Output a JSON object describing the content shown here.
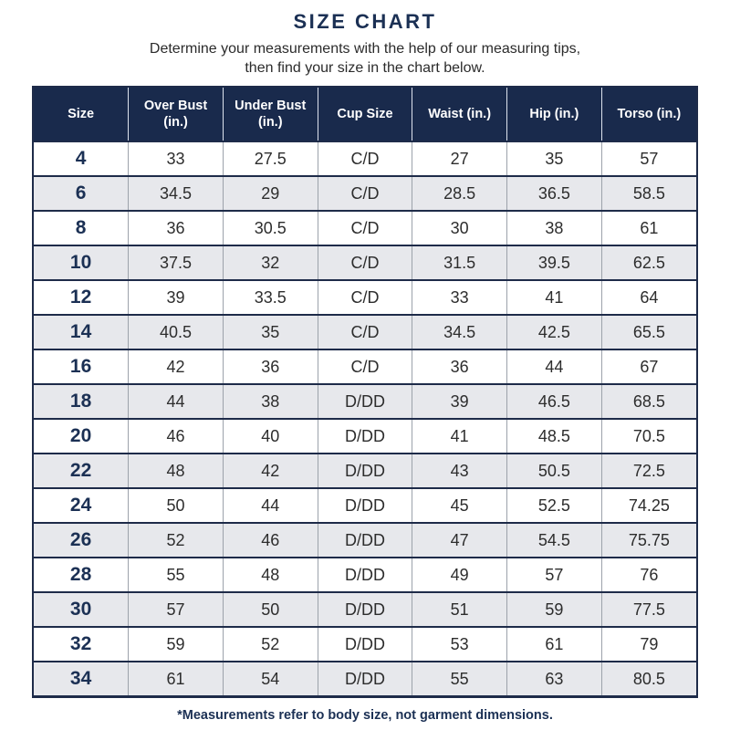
{
  "page": {
    "title": "SIZE CHART",
    "subtitle_line1": "Determine your measurements with the help of our measuring tips,",
    "subtitle_line2": "then find your size in the chart below.",
    "footnote": "*Measurements refer to body size, not garment dimensions."
  },
  "colors": {
    "navy_accent": "#1B3054",
    "header_background": "#192A4C",
    "row_stripe": "#E7E8EC",
    "row_white": "#FFFFFF",
    "body_text": "#2D2D2D",
    "grid_line_navy": "#1E2B49",
    "grid_line_gray": "#9CA2AB"
  },
  "chart_data": {
    "type": "table",
    "title": "SIZE CHART",
    "columns": [
      "Size",
      "Over Bust (in.)",
      "Under Bust (in.)",
      "Cup Size",
      "Waist (in.)",
      "Hip (in.)",
      "Torso (in.)"
    ],
    "rows": [
      [
        "4",
        "33",
        "27.5",
        "C/D",
        "27",
        "35",
        "57"
      ],
      [
        "6",
        "34.5",
        "29",
        "C/D",
        "28.5",
        "36.5",
        "58.5"
      ],
      [
        "8",
        "36",
        "30.5",
        "C/D",
        "30",
        "38",
        "61"
      ],
      [
        "10",
        "37.5",
        "32",
        "C/D",
        "31.5",
        "39.5",
        "62.5"
      ],
      [
        "12",
        "39",
        "33.5",
        "C/D",
        "33",
        "41",
        "64"
      ],
      [
        "14",
        "40.5",
        "35",
        "C/D",
        "34.5",
        "42.5",
        "65.5"
      ],
      [
        "16",
        "42",
        "36",
        "C/D",
        "36",
        "44",
        "67"
      ],
      [
        "18",
        "44",
        "38",
        "D/DD",
        "39",
        "46.5",
        "68.5"
      ],
      [
        "20",
        "46",
        "40",
        "D/DD",
        "41",
        "48.5",
        "70.5"
      ],
      [
        "22",
        "48",
        "42",
        "D/DD",
        "43",
        "50.5",
        "72.5"
      ],
      [
        "24",
        "50",
        "44",
        "D/DD",
        "45",
        "52.5",
        "74.25"
      ],
      [
        "26",
        "52",
        "46",
        "D/DD",
        "47",
        "54.5",
        "75.75"
      ],
      [
        "28",
        "55",
        "48",
        "D/DD",
        "49",
        "57",
        "76"
      ],
      [
        "30",
        "57",
        "50",
        "D/DD",
        "51",
        "59",
        "77.5"
      ],
      [
        "32",
        "59",
        "52",
        "D/DD",
        "53",
        "61",
        "79"
      ],
      [
        "34",
        "61",
        "54",
        "D/DD",
        "55",
        "63",
        "80.5"
      ]
    ]
  }
}
